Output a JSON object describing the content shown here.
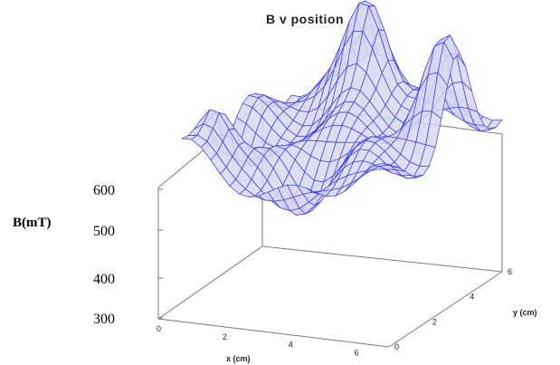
{
  "chart_data": {
    "type": "surface",
    "title": "B v position",
    "zlabel": "B(mT)",
    "xlabel": "x (cm)",
    "ylabel": "y (cm)",
    "z_ticks": [
      300,
      400,
      500,
      600
    ],
    "x_ticks": [
      0,
      2,
      4,
      6
    ],
    "y_ticks": [
      0,
      2,
      4,
      6
    ],
    "zlim": [
      250,
      720
    ],
    "xlim": [
      0,
      7
    ],
    "ylim": [
      0,
      6
    ],
    "colors": {
      "mesh_line": "#3a3ae8",
      "mesh_fill": "#d8d8f0",
      "frame": "#777777"
    }
  }
}
